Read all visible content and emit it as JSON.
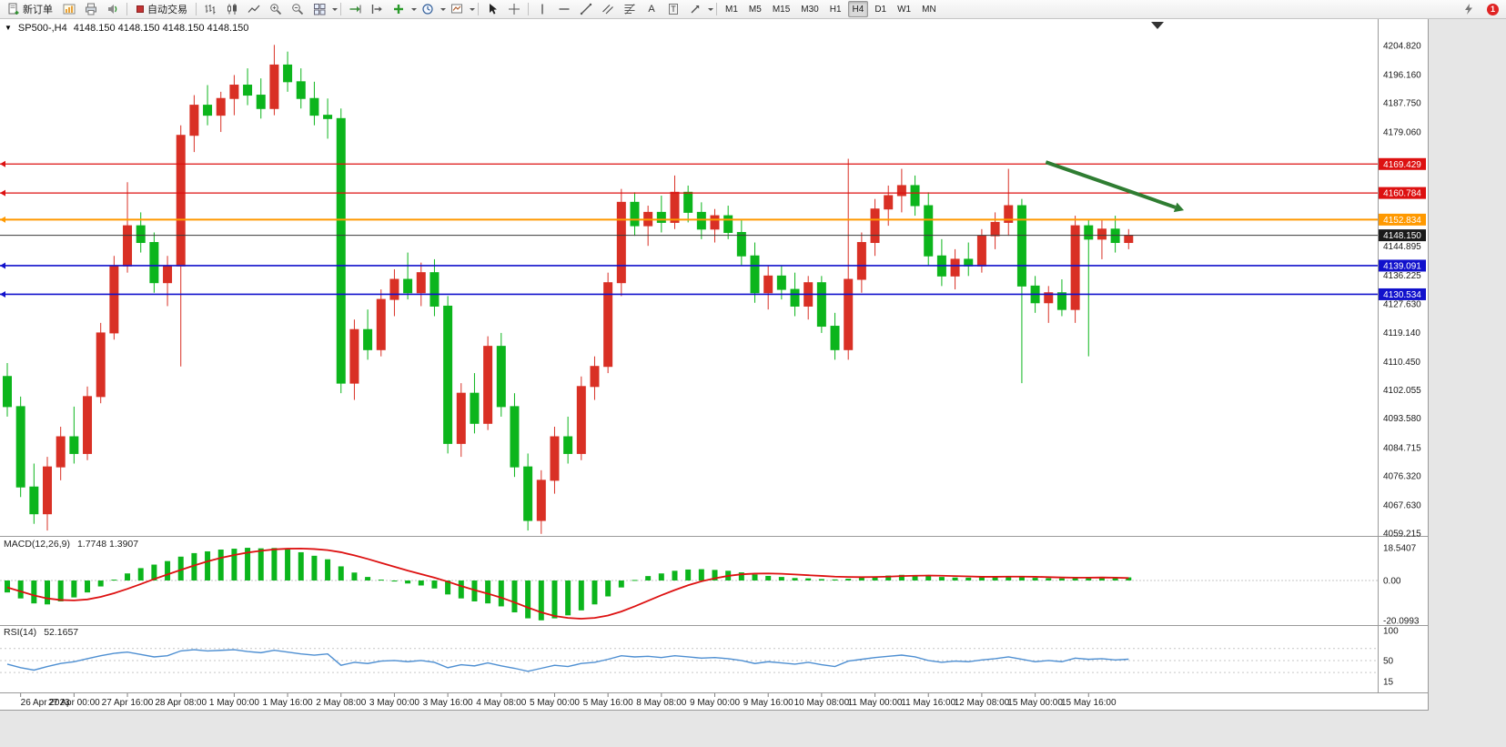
{
  "header": {
    "expand_glyph": "▼",
    "symbol": "SP500-,H4",
    "ohlc": "4148.150 4148.150 4148.150 4148.150"
  },
  "toolbar": {
    "new_order": {
      "label": "新订单"
    },
    "autotrading": {
      "label": "自动交易"
    },
    "text_tool_label": "A",
    "textbox_tool_label": "T",
    "notification_badge": "1",
    "timeframe_buttons": [
      {
        "label": "M1",
        "active": false
      },
      {
        "label": "M5",
        "active": false
      },
      {
        "label": "M15",
        "active": false
      },
      {
        "label": "M30",
        "active": false
      },
      {
        "label": "H1",
        "active": false
      },
      {
        "label": "H4",
        "active": true
      },
      {
        "label": "D1",
        "active": false
      },
      {
        "label": "W1",
        "active": false
      },
      {
        "label": "MN",
        "active": false
      }
    ]
  },
  "chart_data": {
    "type": "candlestick",
    "symbol": "SP500-",
    "timeframe": "H4",
    "current_price": 4148.15,
    "ylim": [
      4059.215,
      4204.82
    ],
    "colors": {
      "bull": "#d93025",
      "bear": "#0cb51c",
      "macd_hist": "#0cb51c",
      "macd_signal": "#dd1111",
      "rsi": "#4e8fd2",
      "level_red": "#dd1111",
      "level_orange": "#ff9900",
      "level_blue": "#1111cc",
      "arrow_green": "#2f7d32"
    },
    "candles": [
      [
        4106,
        4110,
        4094,
        4097
      ],
      [
        4097,
        4100,
        4070,
        4073
      ],
      [
        4073,
        4080,
        4062,
        4065
      ],
      [
        4065,
        4082,
        4060,
        4079
      ],
      [
        4079,
        4091,
        4075,
        4088
      ],
      [
        4088,
        4097,
        4080,
        4083
      ],
      [
        4083,
        4103,
        4081,
        4100
      ],
      [
        4100,
        4122,
        4098,
        4119
      ],
      [
        4119,
        4142,
        4117,
        4139
      ],
      [
        4139,
        4164,
        4137,
        4151
      ],
      [
        4151,
        4155,
        4143,
        4146
      ],
      [
        4146,
        4149,
        4131,
        4134
      ],
      [
        4134,
        4142,
        4127,
        4139
      ],
      [
        4139,
        4181,
        4109,
        4178
      ],
      [
        4178,
        4190,
        4173,
        4187
      ],
      [
        4187,
        4193,
        4181,
        4184
      ],
      [
        4184,
        4191,
        4179,
        4189
      ],
      [
        4189,
        4196,
        4184,
        4193
      ],
      [
        4193,
        4198,
        4187,
        4190
      ],
      [
        4190,
        4195,
        4183,
        4186
      ],
      [
        4186,
        4205,
        4184,
        4199
      ],
      [
        4199,
        4203,
        4191,
        4194
      ],
      [
        4194,
        4198,
        4186,
        4189
      ],
      [
        4189,
        4194,
        4181,
        4184
      ],
      [
        4184,
        4189,
        4177,
        4183
      ],
      [
        4183,
        4186,
        4101,
        4104
      ],
      [
        4104,
        4123,
        4099,
        4120
      ],
      [
        4120,
        4126,
        4111,
        4114
      ],
      [
        4114,
        4132,
        4112,
        4129
      ],
      [
        4129,
        4138,
        4124,
        4135
      ],
      [
        4135,
        4143,
        4129,
        4131
      ],
      [
        4131,
        4140,
        4127,
        4137
      ],
      [
        4137,
        4141,
        4124,
        4127
      ],
      [
        4127,
        4130,
        4083,
        4086
      ],
      [
        4086,
        4104,
        4082,
        4101
      ],
      [
        4101,
        4107,
        4089,
        4092
      ],
      [
        4092,
        4118,
        4090,
        4115
      ],
      [
        4115,
        4119,
        4094,
        4097
      ],
      [
        4097,
        4101,
        4076,
        4079
      ],
      [
        4079,
        4083,
        4060,
        4063
      ],
      [
        4063,
        4078,
        4059,
        4075
      ],
      [
        4075,
        4091,
        4071,
        4088
      ],
      [
        4088,
        4094,
        4080,
        4083
      ],
      [
        4083,
        4106,
        4081,
        4103
      ],
      [
        4103,
        4112,
        4099,
        4109
      ],
      [
        4109,
        4137,
        4107,
        4134
      ],
      [
        4134,
        4162,
        4130,
        4158
      ],
      [
        4158,
        4161,
        4148,
        4151
      ],
      [
        4151,
        4157,
        4145,
        4155
      ],
      [
        4155,
        4160,
        4149,
        4152
      ],
      [
        4152,
        4166,
        4150,
        4161
      ],
      [
        4161,
        4163,
        4152,
        4155
      ],
      [
        4155,
        4158,
        4147,
        4150
      ],
      [
        4150,
        4156,
        4146,
        4154
      ],
      [
        4154,
        4157,
        4147,
        4149
      ],
      [
        4149,
        4153,
        4139,
        4142
      ],
      [
        4142,
        4146,
        4128,
        4131
      ],
      [
        4131,
        4139,
        4126,
        4136
      ],
      [
        4136,
        4139,
        4129,
        4132
      ],
      [
        4132,
        4137,
        4124,
        4127
      ],
      [
        4127,
        4136,
        4123,
        4134
      ],
      [
        4134,
        4136,
        4119,
        4121
      ],
      [
        4121,
        4125,
        4111,
        4114
      ],
      [
        4114,
        4171,
        4111,
        4135
      ],
      [
        4135,
        4149,
        4131,
        4146
      ],
      [
        4146,
        4159,
        4142,
        4156
      ],
      [
        4156,
        4163,
        4151,
        4160
      ],
      [
        4160,
        4168,
        4155,
        4163
      ],
      [
        4163,
        4166,
        4154,
        4157
      ],
      [
        4157,
        4161,
        4139,
        4142
      ],
      [
        4142,
        4147,
        4133,
        4136
      ],
      [
        4136,
        4144,
        4132,
        4141
      ],
      [
        4141,
        4146,
        4136,
        4139
      ],
      [
        4139,
        4150,
        4137,
        4148
      ],
      [
        4148,
        4155,
        4144,
        4152
      ],
      [
        4152,
        4168,
        4148,
        4157
      ],
      [
        4157,
        4159,
        4104,
        4133
      ],
      [
        4133,
        4136,
        4125,
        4128
      ],
      [
        4128,
        4133,
        4122,
        4131
      ],
      [
        4131,
        4135,
        4124,
        4126
      ],
      [
        4126,
        4154,
        4122,
        4151
      ],
      [
        4151,
        4153,
        4112,
        4147
      ],
      [
        4147,
        4153,
        4141,
        4150
      ],
      [
        4150,
        4154,
        4143,
        4146
      ],
      [
        4146,
        4150,
        4144,
        4148.15
      ]
    ],
    "levels": [
      {
        "price": 4169.429,
        "color": "#dd1111",
        "width": 1.2
      },
      {
        "price": 4160.784,
        "color": "#dd1111",
        "width": 1.2
      },
      {
        "price": 4152.834,
        "color": "#ff9900",
        "width": 2
      },
      {
        "price": 4139.091,
        "color": "#1111cc",
        "width": 1.6
      },
      {
        "price": 4130.534,
        "color": "#1111cc",
        "width": 1.6
      }
    ],
    "price_axis_ticks": [
      "4204.820",
      "4196.160",
      "4187.750",
      "4179.060",
      "4144.895",
      "4136.225",
      "4127.630",
      "4119.140",
      "4110.450",
      "4102.055",
      "4093.580",
      "4084.715",
      "4076.320",
      "4067.630",
      "4059.215"
    ],
    "price_axis_badges": [
      {
        "text": "4169.429",
        "color": "#dd1111"
      },
      {
        "text": "4160.784",
        "color": "#dd1111"
      },
      {
        "text": "4152.834",
        "color": "#ff9900"
      },
      {
        "text": "4148.150",
        "color": "#1a1a1a"
      },
      {
        "text": "4139.091",
        "color": "#1111cc"
      },
      {
        "text": "4130.534",
        "color": "#1111cc"
      }
    ],
    "annotation_arrow": {
      "start": {
        "bar": 77.8,
        "price": 4170
      },
      "end": {
        "bar": 87.5,
        "price": 4156.5
      },
      "color": "#2f7d32"
    },
    "time_labels": [
      "26 Apr 2023",
      "27 Apr 00:00",
      "27 Apr 16:00",
      "28 Apr 08:00",
      "1 May 00:00",
      "1 May 16:00",
      "2 May 08:00",
      "3 May 00:00",
      "3 May 16:00",
      "4 May 08:00",
      "5 May 00:00",
      "5 May 16:00",
      "8 May 08:00",
      "9 May 00:00",
      "9 May 16:00",
      "10 May 08:00",
      "11 May 00:00",
      "11 May 16:00",
      "12 May 08:00",
      "15 May 00:00",
      "15 May 16:00"
    ],
    "first_label_bar": 1,
    "label_every_n_bars": 4,
    "macd": {
      "label": "MACD(12,26,9)",
      "values_text": "1.7748 1.3907",
      "max": 18.5407,
      "min": -20.0993,
      "scale_labels": [
        "18.5407",
        "0.00",
        "-20.0993"
      ],
      "histogram": [
        -6,
        -9,
        -11.5,
        -12,
        -10.5,
        -8.5,
        -6,
        -3,
        0.5,
        4,
        7,
        9,
        11,
        13.5,
        15.5,
        16.5,
        17.5,
        18,
        18.5,
        18.2,
        18.4,
        17.5,
        16,
        14,
        12,
        8,
        4.5,
        2,
        0.5,
        -0.5,
        -1.5,
        -2.5,
        -4,
        -7,
        -9,
        -10.5,
        -11.5,
        -13,
        -16,
        -19,
        -20,
        -19,
        -17.5,
        -15,
        -12,
        -8,
        -3.5,
        0.3,
        2.5,
        4,
        5.5,
        6.2,
        6.4,
        6,
        5.5,
        4.6,
        3.4,
        2.6,
        2,
        1.4,
        1.2,
        0.8,
        0.6,
        1,
        1.6,
        2.2,
        2.8,
        3.2,
        3.1,
        2.6,
        2,
        1.7,
        1.6,
        1.8,
        2.1,
        2.4,
        2,
        1.5,
        1.3,
        1.2,
        1.6,
        1.9,
        2,
        1.85,
        1.77
      ],
      "signal": [
        -3.5,
        -5.5,
        -7.5,
        -9,
        -9.8,
        -10,
        -9.5,
        -8.2,
        -6.4,
        -4.2,
        -1.8,
        0.8,
        3.4,
        6,
        8.5,
        10.8,
        12.8,
        14.4,
        15.8,
        16.8,
        17.6,
        18,
        18.1,
        17.8,
        17.2,
        16,
        14.2,
        12.2,
        10,
        7.8,
        5.6,
        3.6,
        1.6,
        -0.6,
        -2.8,
        -4.8,
        -6.6,
        -8.6,
        -11,
        -13.6,
        -16,
        -17.8,
        -18.8,
        -19.2,
        -18.8,
        -17.6,
        -15.6,
        -13,
        -10.2,
        -7.4,
        -4.8,
        -2.4,
        -0.4,
        1.2,
        2.6,
        3.5,
        3.9,
        4,
        3.8,
        3.4,
        3,
        2.6,
        2.2,
        2,
        1.9,
        2,
        2.2,
        2.5,
        2.7,
        2.8,
        2.7,
        2.5,
        2.3,
        2.1,
        2.1,
        2.2,
        2.2,
        2.1,
        1.9,
        1.7,
        1.6,
        1.6,
        1.7,
        1.6,
        1.39
      ]
    },
    "rsi": {
      "label": "RSI(14)",
      "value_text": "52.1657",
      "scale_labels": [
        "100",
        "50",
        "15"
      ],
      "levels_dashed": [
        70,
        50,
        30
      ],
      "values": [
        44,
        38,
        34,
        40,
        45,
        48,
        53,
        58,
        62,
        64,
        60,
        56,
        58,
        66,
        68,
        66,
        67,
        68,
        65,
        63,
        67,
        64,
        61,
        59,
        61,
        42,
        47,
        45,
        49,
        50,
        48,
        50,
        47,
        38,
        43,
        41,
        46,
        41,
        37,
        32,
        37,
        42,
        40,
        45,
        47,
        52,
        58,
        56,
        57,
        55,
        58,
        56,
        54,
        55,
        53,
        50,
        45,
        48,
        46,
        44,
        47,
        43,
        40,
        49,
        52,
        55,
        57,
        59,
        56,
        50,
        47,
        49,
        48,
        51,
        53,
        56,
        52,
        48,
        50,
        48,
        54,
        52,
        53,
        51,
        52.17
      ]
    }
  }
}
